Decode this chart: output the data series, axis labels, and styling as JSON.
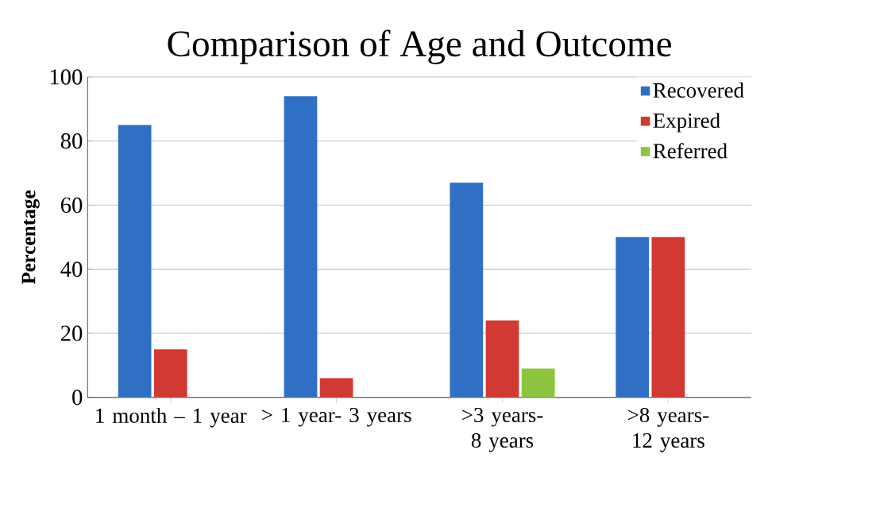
{
  "chart_data": {
    "type": "bar",
    "title": "Comparison of Age and Outcome",
    "ylabel": "Percentage",
    "categories": [
      "1 month – 1 year",
      "> 1 year- 3 years",
      ">3 years- 8 years",
      ">8 years- 12 years"
    ],
    "series": [
      {
        "name": "Recovered",
        "color": "#2f6fc4",
        "values": [
          85,
          94,
          67,
          50
        ]
      },
      {
        "name": "Expired",
        "color": "#d03a33",
        "values": [
          15,
          6,
          24,
          50
        ]
      },
      {
        "name": "Referred",
        "color": "#8cc63e",
        "values": [
          0,
          0,
          9,
          0
        ]
      }
    ],
    "ylim": [
      0,
      100
    ],
    "yticks": [
      0,
      20,
      40,
      60,
      80,
      100
    ],
    "grid": "y",
    "legend": "top right"
  }
}
